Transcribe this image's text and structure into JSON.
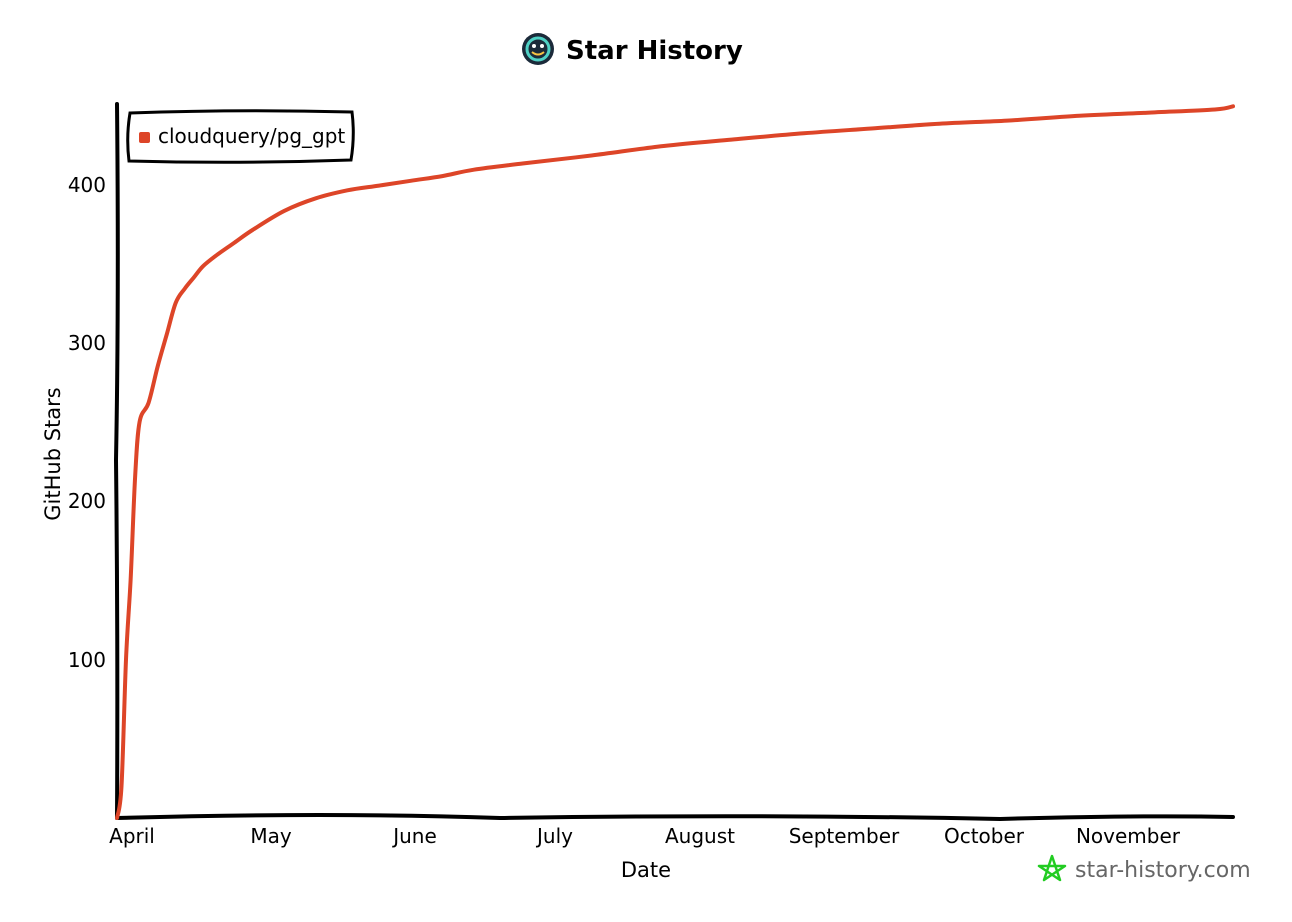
{
  "colors": {
    "series": "#dd4528",
    "axis": "#000000",
    "watermark_icon": "#22cc22",
    "watermark_text": "#666666"
  },
  "header": {
    "logo_icon": "star-history-logo-icon",
    "title": "Star History"
  },
  "watermark": {
    "icon": "star-outline-icon",
    "text": "star-history.com"
  },
  "chart_data": {
    "type": "line",
    "title": "Star History",
    "xlabel": "Date",
    "ylabel": "GitHub Stars",
    "x_tick_labels": [
      "April",
      "May",
      "June",
      "July",
      "August",
      "September",
      "October",
      "November"
    ],
    "y_ticks": [
      100,
      200,
      300,
      400
    ],
    "ylim": [
      0,
      450
    ],
    "grid": false,
    "legend": {
      "position": "top-left",
      "entries": [
        "cloudquery/pg_gpt"
      ]
    },
    "series": [
      {
        "name": "cloudquery/pg_gpt",
        "color": "#dd4528",
        "x": [
          "2023-04-01",
          "2023-04-02",
          "2023-04-03",
          "2023-04-04",
          "2023-04-05",
          "2023-04-06",
          "2023-04-08",
          "2023-04-10",
          "2023-04-12",
          "2023-04-14",
          "2023-04-16",
          "2023-04-18",
          "2023-04-20",
          "2023-04-23",
          "2023-04-27",
          "2023-05-01",
          "2023-05-08",
          "2023-05-15",
          "2023-05-22",
          "2023-05-29",
          "2023-06-05",
          "2023-06-12",
          "2023-06-19",
          "2023-06-30",
          "2023-07-15",
          "2023-07-31",
          "2023-08-15",
          "2023-08-31",
          "2023-09-15",
          "2023-09-30",
          "2023-10-15",
          "2023-10-31",
          "2023-11-15",
          "2023-11-30",
          "2023-12-04"
        ],
        "y": [
          0,
          20,
          100,
          150,
          215,
          250,
          262,
          285,
          305,
          325,
          334,
          341,
          348,
          355,
          363,
          371,
          383,
          391,
          396,
          399,
          402,
          405,
          409,
          413,
          418,
          424,
          428,
          432,
          435,
          438,
          440,
          443,
          445,
          447,
          449
        ]
      }
    ]
  }
}
